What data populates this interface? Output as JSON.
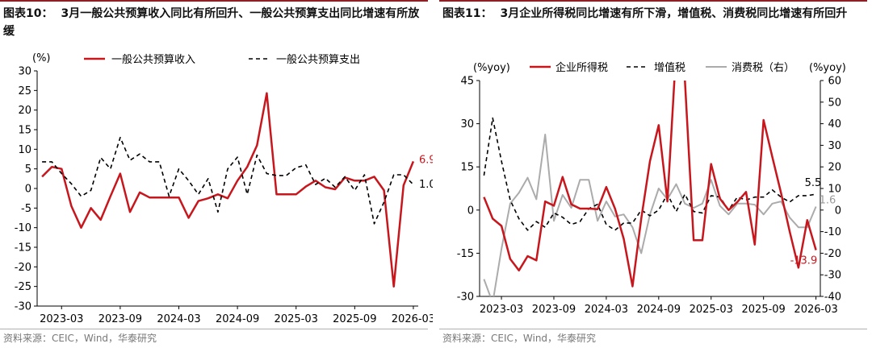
{
  "charts": [
    {
      "figure_number": "图表10：",
      "title": "3月一般公共预算收入同比有所回升、一般公共预算支出同比增速有所放缓",
      "source": "资料来源：CEIC，Wind，华泰研究",
      "unit_left": "(%)",
      "ann_last_income": "6.9",
      "ann_last_spend": "1.0"
    },
    {
      "figure_number": "图表11：",
      "title": "3月企业所得税同比增速有所下滑，增值税、消费税同比增速有所回升",
      "source": "资料来源：CEIC，Wind，华泰研究",
      "unit_left": "(%yoy)",
      "unit_right": "(%yoy)",
      "ann_last_cit": "-13.9",
      "ann_last_vat": "5.5",
      "ann_last_excise": "1.6"
    }
  ],
  "colors": {
    "red": "#c8161d",
    "black": "#000000",
    "gray": "#ababab",
    "title_rule": "#8e1f24"
  },
  "chart_data": [
    {
      "type": "line",
      "title": "3月一般公共预算收入同比有所回升、一般公共预算支出同比增速有所放缓",
      "ylabel": "(%)",
      "ylim": [
        -30,
        30
      ],
      "yticks": [
        -30,
        -25,
        -20,
        -15,
        -10,
        -5,
        0,
        5,
        10,
        15,
        20,
        25,
        30
      ],
      "xtick_labels": [
        "2023-03",
        "2023-09",
        "2024-03",
        "2024-09",
        "2025-03",
        "2025-09",
        "2026-03"
      ],
      "x": [
        "2023-01",
        "2023-02",
        "2023-03",
        "2023-04",
        "2023-05",
        "2023-06",
        "2023-07",
        "2023-08",
        "2023-09",
        "2023-10",
        "2023-11",
        "2023-12",
        "2024-01",
        "2024-02",
        "2024-03",
        "2024-04",
        "2024-05",
        "2024-06",
        "2024-07",
        "2024-08",
        "2024-09",
        "2024-10",
        "2024-11",
        "2024-12",
        "2025-01",
        "2025-02",
        "2025-03",
        "2025-04",
        "2025-05",
        "2025-06",
        "2025-07",
        "2025-08",
        "2025-09",
        "2025-10",
        "2025-11",
        "2025-12",
        "2026-01",
        "2026-02",
        "2026-03"
      ],
      "legend_position": "top",
      "grid": false,
      "series": [
        {
          "name": "一般公共预算收入",
          "color": "#c8161d",
          "dash": false,
          "width": 2.5,
          "values": [
            3.0,
            5.5,
            5.0,
            -4.5,
            -10.0,
            -5.0,
            -8.0,
            -2.0,
            3.8,
            -6.0,
            -1.0,
            -2.3,
            -2.3,
            -2.3,
            -2.3,
            -7.5,
            -3.2,
            -2.5,
            -1.5,
            -2.5,
            2.0,
            5.5,
            11.0,
            24.3,
            -1.5,
            -1.5,
            -1.5,
            0.5,
            2.0,
            0.3,
            -0.2,
            2.8,
            2.0,
            2.0,
            3.0,
            -0.5,
            -25.0,
            0.8,
            6.9
          ]
        },
        {
          "name": "一般公共预算支出",
          "color": "#000000",
          "dash": true,
          "width": 1.6,
          "values": [
            6.8,
            6.8,
            3.8,
            1.2,
            -2.0,
            -0.5,
            7.9,
            5.0,
            13.0,
            7.2,
            8.8,
            6.8,
            6.8,
            -2.0,
            5.0,
            2.0,
            -1.5,
            2.5,
            -6.0,
            5.0,
            8.0,
            -1.5,
            8.5,
            3.8,
            3.3,
            3.3,
            5.3,
            6.0,
            1.0,
            2.6,
            0.3,
            3.0,
            -0.5,
            3.5,
            -9.0,
            -3.5,
            3.5,
            3.5,
            1.0
          ]
        }
      ]
    },
    {
      "type": "line",
      "title": "3月企业所得税同比增速有所下滑，增值税、消费税同比增速有所回升",
      "ylabel": "(%yoy)",
      "y2label": "(%yoy)",
      "ylim": [
        -30,
        45
      ],
      "yticks": [
        -30,
        -15,
        0,
        15,
        30,
        45
      ],
      "y2lim": [
        -40,
        60
      ],
      "y2ticks": [
        -40,
        -30,
        -20,
        -10,
        0,
        10,
        20,
        30,
        40,
        50,
        60
      ],
      "xtick_labels": [
        "2023-03",
        "2023-09",
        "2024-03",
        "2024-09",
        "2025-03",
        "2025-09",
        "2026-03"
      ],
      "x": [
        "2023-01",
        "2023-02",
        "2023-03",
        "2023-04",
        "2023-05",
        "2023-06",
        "2023-07",
        "2023-08",
        "2023-09",
        "2023-10",
        "2023-11",
        "2023-12",
        "2024-01",
        "2024-02",
        "2024-03",
        "2024-04",
        "2024-05",
        "2024-06",
        "2024-07",
        "2024-08",
        "2024-09",
        "2024-10",
        "2024-11",
        "2024-12",
        "2025-01",
        "2025-02",
        "2025-03",
        "2025-04",
        "2025-05",
        "2025-06",
        "2025-07",
        "2025-08",
        "2025-09",
        "2025-10",
        "2025-11",
        "2025-12",
        "2026-01",
        "2026-02",
        "2026-03"
      ],
      "legend_position": "top",
      "grid": false,
      "series": [
        {
          "name": "企业所得税",
          "color": "#c8161d",
          "dash": false,
          "width": 2.5,
          "axis": "left",
          "values": [
            4.5,
            -3.0,
            -5.5,
            -17.0,
            -21.0,
            -16.0,
            -17.5,
            3.0,
            1.5,
            11.5,
            2.0,
            0.5,
            0.5,
            0.3,
            8.0,
            0.5,
            -10.0,
            -26.5,
            -3.0,
            17.0,
            29.5,
            3.0,
            56.0,
            45.0,
            -10.5,
            -10.5,
            16.0,
            4.0,
            0.0,
            2.8,
            6.3,
            -12.0,
            31.3,
            18.5,
            6.0,
            -7.5,
            -20.0,
            -3.5,
            -13.9
          ]
        },
        {
          "name": "增值税",
          "color": "#000000",
          "dash": true,
          "width": 1.6,
          "axis": "left",
          "values": [
            12.0,
            32.0,
            17.0,
            3.5,
            -3.0,
            -7.0,
            -4.0,
            -6.0,
            -1.0,
            -2.5,
            -5.0,
            -4.0,
            0.5,
            2.0,
            -5.0,
            -7.0,
            -4.5,
            -4.5,
            0.0,
            -2.0,
            0.0,
            5.5,
            -0.5,
            5.5,
            -0.5,
            -1.0,
            5.0,
            4.5,
            0.0,
            4.5,
            3.5,
            4.5,
            4.5,
            7.0,
            4.5,
            2.8,
            5.0,
            5.0,
            5.5
          ]
        },
        {
          "name": "消费税（右）",
          "color": "#ababab",
          "dash": false,
          "width": 2.0,
          "axis": "right",
          "values": [
            -32.0,
            -43.0,
            -18.0,
            3.0,
            8.0,
            15.0,
            5.0,
            35.0,
            -5.0,
            7.0,
            1.0,
            14.0,
            14.0,
            -5.0,
            4.0,
            -3.0,
            -2.0,
            -8.0,
            -20.0,
            -2.0,
            10.0,
            5.0,
            12.0,
            3.0,
            1.0,
            3.0,
            14.0,
            2.0,
            -2.0,
            3.0,
            3.0,
            2.5,
            -2.0,
            3.0,
            4.0,
            -3.5,
            -8.0,
            -8.0,
            1.6
          ]
        }
      ]
    }
  ]
}
